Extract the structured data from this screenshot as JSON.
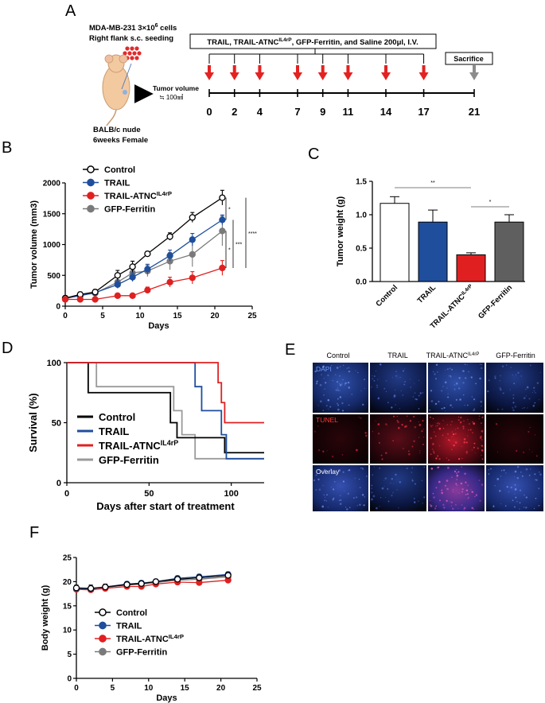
{
  "colors": {
    "control": "#000000",
    "trail": "#1f4e9c",
    "trail_atnc": "#e02020",
    "gfp": "#7a7a7a",
    "arrow_red": "#e32222",
    "arrow_gray": "#8c8c8c"
  },
  "panel_a": {
    "letter": "A",
    "cells_line1": "MDA-MB-231 3×10",
    "cells_sup": "6",
    "cells_line1_end": " cells",
    "cells_line2": "Right flank s.c. seeding",
    "mouse_line1": "BALB/c nude",
    "mouse_line2": "6weeks Female",
    "tumor_volume_label": "Tumor volume",
    "tumor_volume_value": "≒ 100㎣",
    "treatment_pre": "TRAIL, TRAIL-ATNC",
    "treatment_sup": "IL4rP",
    "treatment_post": ", GFP-Ferritin, and Saline 200μl, I.V.",
    "sacrifice": "Sacrifice",
    "days": [
      "0",
      "2",
      "4",
      "7",
      "9",
      "11",
      "14",
      "17",
      "21"
    ]
  },
  "panel_b": {
    "letter": "B"
  },
  "panel_c": {
    "letter": "C"
  },
  "panel_d": {
    "letter": "D"
  },
  "panel_e": {
    "letter": "E",
    "columns": [
      "Control",
      "TRAIL",
      "TRAIL-ATNC",
      "GFP-Ferritin"
    ],
    "column_sup": "IL4rP",
    "rows": [
      "DAPI",
      "TUNEL",
      "Overlay"
    ]
  },
  "panel_f": {
    "letter": "F"
  },
  "chart_data": [
    {
      "id": "B",
      "type": "line",
      "title": "",
      "xlabel": "Days",
      "ylabel": "Tumor volume (mm3)",
      "xlim": [
        0,
        25
      ],
      "ylim": [
        0,
        2000
      ],
      "xticks": [
        "0",
        "5",
        "10",
        "15",
        "20",
        "25"
      ],
      "yticks": [
        "0",
        "500",
        "1000",
        "1500",
        "2000"
      ],
      "legend": [
        "Control",
        "TRAIL",
        "TRAIL-ATNC",
        "GFP-Ferritin"
      ],
      "legend_sup": "IL4rP",
      "x": [
        0,
        2,
        4,
        7,
        9,
        11,
        14,
        17,
        21
      ],
      "series": [
        {
          "name": "Control",
          "values": [
            130,
            190,
            230,
            500,
            640,
            850,
            1130,
            1440,
            1760
          ],
          "errors": [
            40,
            40,
            40,
            80,
            90,
            40,
            60,
            80,
            120
          ]
        },
        {
          "name": "TRAIL",
          "values": [
            130,
            170,
            220,
            350,
            470,
            600,
            820,
            1080,
            1400
          ],
          "errors": [
            30,
            30,
            30,
            60,
            70,
            80,
            90,
            100,
            80
          ]
        },
        {
          "name": "TRAIL-ATNC",
          "values": [
            110,
            110,
            110,
            170,
            170,
            260,
            390,
            460,
            620
          ],
          "errors": [
            30,
            30,
            30,
            30,
            30,
            50,
            80,
            100,
            120
          ]
        },
        {
          "name": "GFP-Ferritin",
          "values": [
            120,
            180,
            210,
            390,
            540,
            570,
            730,
            840,
            1220
          ],
          "errors": [
            30,
            30,
            30,
            70,
            90,
            90,
            140,
            200,
            240
          ]
        }
      ],
      "significance": [
        "*",
        "*",
        "***",
        "****"
      ]
    },
    {
      "id": "C",
      "type": "bar",
      "xlabel": "",
      "ylabel": "Tumor weight (g)",
      "ylim": [
        0,
        1.5
      ],
      "yticks": [
        "0.0",
        "0.5",
        "1.0",
        "1.5"
      ],
      "categories": [
        "Control",
        "TRAIL",
        "TRAIL-ATNC",
        "GFP-Ferritin"
      ],
      "category_sup": "IL4rP",
      "values": [
        1.17,
        0.89,
        0.4,
        0.89
      ],
      "errors": [
        0.1,
        0.18,
        0.03,
        0.11
      ],
      "significance": [
        "**",
        "*"
      ]
    },
    {
      "id": "D",
      "type": "line",
      "xlabel": "Days after start of treatment",
      "ylabel": "Survival (%)",
      "xlim": [
        0,
        120
      ],
      "ylim": [
        0,
        100
      ],
      "xticks": [
        "0",
        "50",
        "100"
      ],
      "yticks": [
        "0",
        "50",
        "100"
      ],
      "legend": [
        "Control",
        "TRAIL",
        "TRAIL-ATNC",
        "GFP-Ferritin"
      ],
      "legend_sup": "IL4rP",
      "series": [
        {
          "name": "Control",
          "x": [
            0,
            13,
            63,
            67,
            96,
            120
          ],
          "values": [
            100,
            75,
            50,
            37.5,
            25,
            25
          ]
        },
        {
          "name": "TRAIL",
          "x": [
            0,
            78,
            82,
            94,
            97,
            120
          ],
          "values": [
            100,
            80,
            60,
            40,
            20,
            20
          ]
        },
        {
          "name": "TRAIL-ATNC",
          "x": [
            0,
            92,
            94,
            96,
            120
          ],
          "values": [
            100,
            83.3,
            66.7,
            50,
            50
          ]
        },
        {
          "name": "GFP-Ferritin",
          "x": [
            0,
            18,
            65,
            70,
            78,
            120
          ],
          "values": [
            100,
            80,
            60,
            40,
            20,
            20
          ]
        }
      ]
    },
    {
      "id": "F",
      "type": "line",
      "xlabel": "Days",
      "ylabel": "Body weight (g)",
      "xlim": [
        0,
        25
      ],
      "ylim": [
        0,
        25
      ],
      "xticks": [
        "0",
        "5",
        "10",
        "15",
        "20",
        "25"
      ],
      "yticks": [
        "0",
        "5",
        "10",
        "15",
        "20",
        "25"
      ],
      "legend": [
        "Control",
        "TRAIL",
        "TRAIL-ATNC",
        "GFP-Ferritin"
      ],
      "legend_sup": "IL4rP",
      "x": [
        0,
        2,
        4,
        7,
        9,
        11,
        14,
        17,
        21
      ],
      "series": [
        {
          "name": "Control",
          "values": [
            18.7,
            18.6,
            18.9,
            19.4,
            19.6,
            20.0,
            20.5,
            20.8,
            21.3
          ],
          "errors": [
            0.6,
            0.7,
            0.6,
            0.5,
            0.5,
            0.5,
            0.5,
            0.6,
            0.6
          ]
        },
        {
          "name": "TRAIL",
          "values": [
            18.6,
            18.5,
            18.9,
            19.5,
            19.7,
            20.0,
            20.7,
            21.0,
            21.5
          ],
          "errors": [
            0.5,
            0.6,
            0.5,
            0.5,
            0.5,
            0.5,
            0.5,
            0.5,
            0.5
          ]
        },
        {
          "name": "TRAIL-ATNC",
          "values": [
            18.4,
            18.3,
            18.6,
            19.0,
            19.0,
            19.5,
            19.9,
            19.8,
            20.3
          ],
          "errors": [
            0.4,
            0.4,
            0.4,
            0.4,
            0.4,
            0.4,
            0.4,
            0.4,
            0.4
          ]
        },
        {
          "name": "GFP-Ferritin",
          "values": [
            18.5,
            18.6,
            18.8,
            19.3,
            19.5,
            19.8,
            20.3,
            20.5,
            21.0
          ],
          "errors": [
            0.5,
            0.5,
            0.5,
            0.5,
            0.5,
            0.5,
            0.5,
            0.5,
            0.5
          ]
        }
      ]
    }
  ]
}
